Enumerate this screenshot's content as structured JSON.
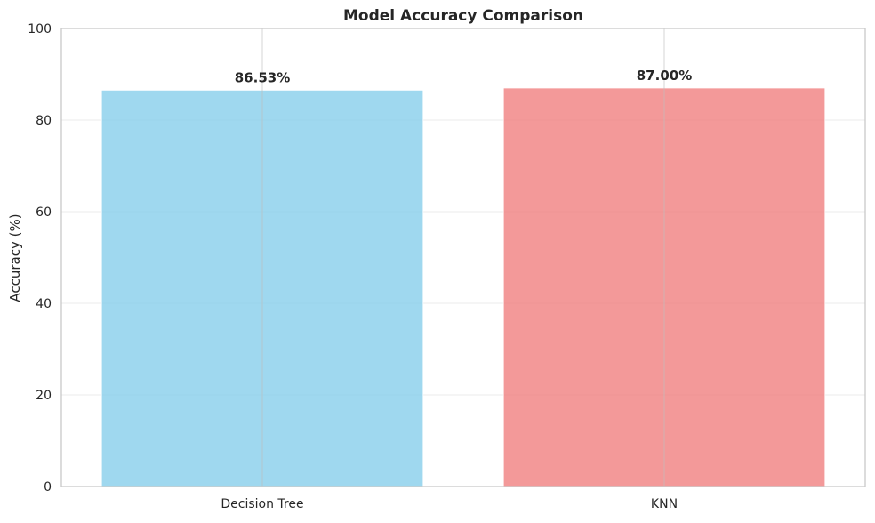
{
  "chart_data": {
    "type": "bar",
    "title": "Model Accuracy Comparison",
    "xlabel": "",
    "ylabel": "Accuracy (%)",
    "categories": [
      "Decision Tree",
      "KNN"
    ],
    "values": [
      86.53,
      87.0
    ],
    "value_labels": [
      "86.53%",
      "87.00%"
    ],
    "bar_colors": [
      "#87CEEB",
      "#F08080"
    ],
    "ylim": [
      0,
      100
    ],
    "yticks": [
      0,
      20,
      40,
      60,
      80,
      100
    ],
    "ytick_labels": [
      "0",
      "20",
      "40",
      "60",
      "80",
      "100"
    ],
    "grid": true,
    "legend": "none"
  }
}
